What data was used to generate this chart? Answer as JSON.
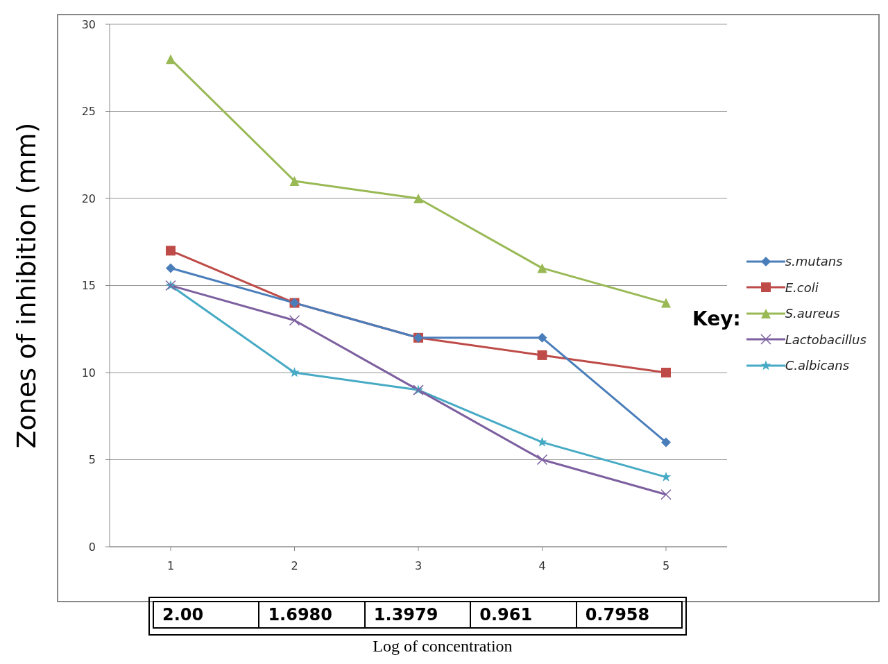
{
  "chart_data": {
    "type": "line",
    "ylabel": "Zones of inhibition (mm)",
    "xlabel": "Log of concentration",
    "legend_title": "Key:",
    "categories": [
      "1",
      "2",
      "3",
      "4",
      "5"
    ],
    "series": [
      {
        "name": "s.mutans",
        "color": "#4a7ebb",
        "marker": "diamond",
        "values": [
          16,
          14,
          12,
          12,
          6
        ]
      },
      {
        "name": "E.coli",
        "color": "#be4b48",
        "marker": "square",
        "values": [
          17,
          14,
          12,
          11,
          10
        ]
      },
      {
        "name": "S.aureus",
        "color": "#98b954",
        "marker": "triangle",
        "values": [
          28,
          21,
          20,
          16,
          14
        ]
      },
      {
        "name": "Lactobacillus",
        "color": "#7d60a0",
        "marker": "cross",
        "values": [
          15,
          13,
          9,
          5,
          3
        ]
      },
      {
        "name": "C.albicans",
        "color": "#46aac5",
        "marker": "star",
        "values": [
          15,
          10,
          9,
          6,
          4
        ]
      }
    ],
    "ylim": [
      0,
      30
    ],
    "yticks": [
      0,
      5,
      10,
      15,
      20,
      25,
      30
    ],
    "grid": "y",
    "legend": "right",
    "annotations": [
      "2.00",
      "1.6980",
      "1.3979",
      "0.961",
      "0.7958"
    ]
  }
}
